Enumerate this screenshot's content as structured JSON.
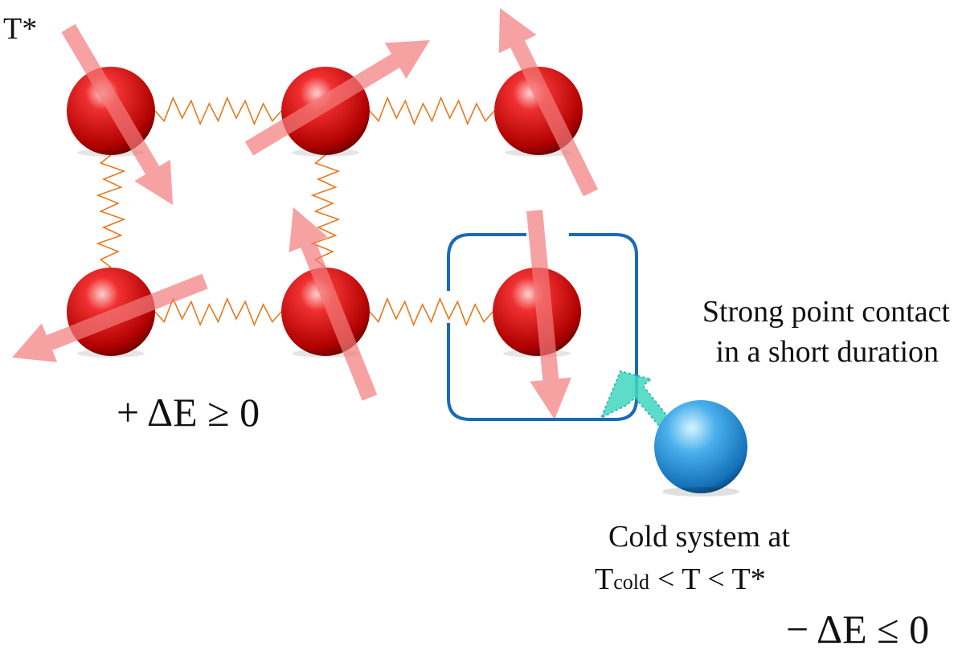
{
  "labels": {
    "t_star": "T*",
    "energy_gain": "+ ΔE ≥ 0",
    "contact": [
      "Strong point contact",
      "in a short duration"
    ],
    "cold_system": {
      "line1": "Cold system at",
      "t": "T",
      "sub": "cold",
      "rest": "< T < T*"
    },
    "energy_loss": "− ΔE ≤ 0"
  }
}
